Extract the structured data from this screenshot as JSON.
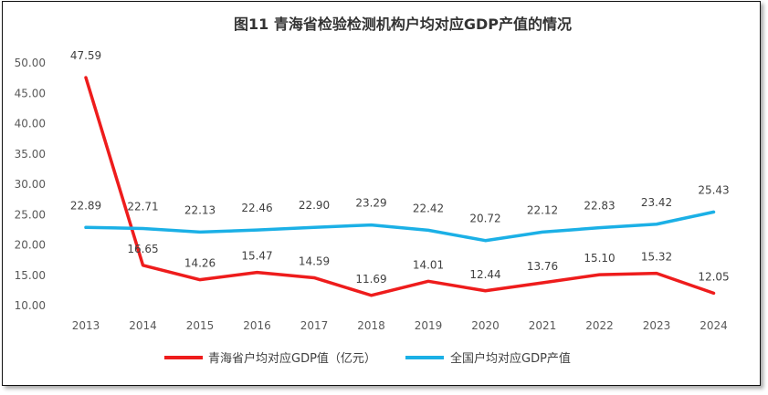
{
  "chart_data": {
    "type": "line",
    "title": "图11  青海省检验检测机构户均对应GDP产值的情况",
    "categories": [
      "2013",
      "2014",
      "2015",
      "2016",
      "2017",
      "2018",
      "2019",
      "2020",
      "2021",
      "2022",
      "2023",
      "2024"
    ],
    "ylim": [
      10,
      50
    ],
    "yticks": [
      "50.00",
      "45.00",
      "40.00",
      "35.00",
      "30.00",
      "25.00",
      "20.00",
      "15.00",
      "10.00"
    ],
    "ytick_values": [
      50,
      45,
      40,
      35,
      30,
      25,
      20,
      15,
      10
    ],
    "series": [
      {
        "name": "青海省户均对应GDP值（亿元）",
        "color": "#ee1c1c",
        "values": [
          47.59,
          16.65,
          14.26,
          15.47,
          14.59,
          11.69,
          14.01,
          12.44,
          13.76,
          15.1,
          15.32,
          12.05
        ],
        "labels": [
          "47.59",
          "16.65",
          "14.26",
          "15.47",
          "14.59",
          "11.69",
          "14.01",
          "12.44",
          "13.76",
          "15.10",
          "15.32",
          "12.05"
        ]
      },
      {
        "name": "全国户均对应GDP产值",
        "color": "#1bb0e6",
        "values": [
          22.89,
          22.71,
          22.13,
          22.46,
          22.9,
          23.29,
          22.42,
          20.72,
          22.12,
          22.83,
          23.42,
          25.43
        ],
        "labels": [
          "22.89",
          "22.71",
          "22.13",
          "22.46",
          "22.90",
          "23.29",
          "22.42",
          "20.72",
          "22.12",
          "22.83",
          "23.42",
          "25.43"
        ]
      }
    ],
    "legend_position": "bottom"
  }
}
